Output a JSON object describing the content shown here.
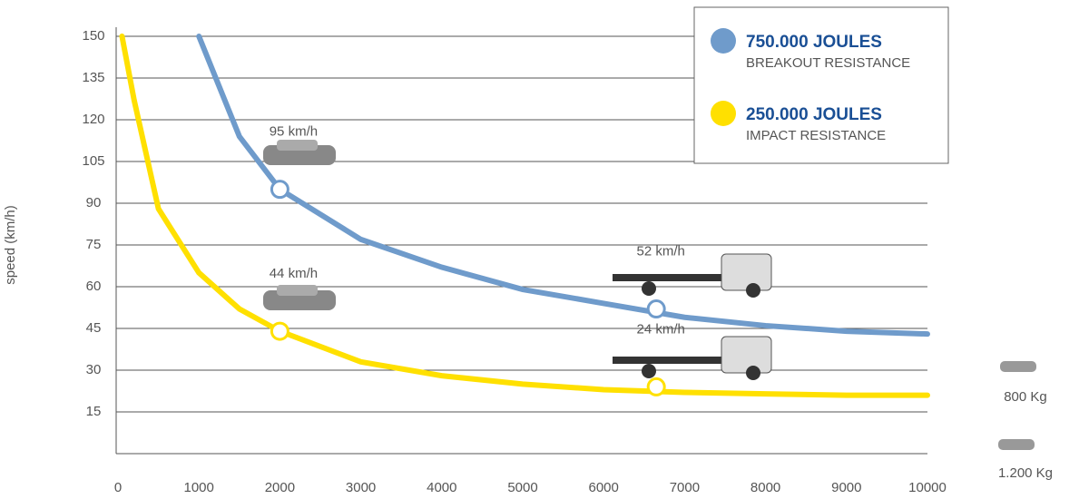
{
  "chart_data": {
    "type": "line",
    "y_label": "speed (km/h)",
    "xlim": [
      0,
      10000
    ],
    "ylim": [
      0,
      150
    ],
    "xticks": [
      0,
      1000,
      2000,
      3000,
      4000,
      5000,
      6000,
      7000,
      8000,
      9000,
      10000
    ],
    "yticks": [
      15,
      30,
      45,
      60,
      75,
      90,
      105,
      120,
      135,
      150
    ],
    "grid": true,
    "legend": "top-right",
    "series": [
      {
        "name": "750.000 JOULES",
        "description": "BREAKOUT RESISTANCE",
        "color": "#6f9bcb",
        "x": [
          1000,
          1500,
          2000,
          3000,
          4000,
          5000,
          6000,
          7000,
          8000,
          9000,
          10000
        ],
        "values": [
          150,
          114,
          95,
          77,
          67,
          59,
          54,
          49,
          46,
          44,
          43
        ],
        "markers": {
          "x": [
            2000,
            6650
          ],
          "values": [
            95,
            52
          ],
          "value_labels": [
            "95 km/h",
            "52 km/h"
          ]
        }
      },
      {
        "name": "250.000 JOULES",
        "description": "IMPACT RESISTANCE",
        "color": "#ffe000",
        "x": [
          50,
          200,
          500,
          1000,
          1500,
          2000,
          3000,
          4000,
          5000,
          6000,
          7000,
          8000,
          9000,
          10000
        ],
        "values": [
          150,
          127,
          88,
          65,
          52,
          44,
          33,
          28,
          25,
          23,
          22,
          21.5,
          21,
          21
        ],
        "markers": {
          "x": [
            2000,
            6650
          ],
          "values": [
            44,
            24
          ],
          "value_labels": [
            "44 km/h",
            "24 km/h"
          ]
        }
      }
    ],
    "side_labels": [
      "800 Kg",
      "1.200 Kg"
    ]
  }
}
